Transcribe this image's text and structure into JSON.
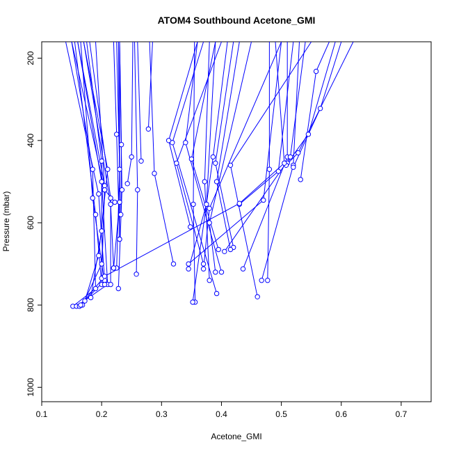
{
  "chart_data": {
    "type": "line",
    "title": "ATOM4 Southbound Acetone_GMI",
    "xlabel": "Acetone_GMI",
    "ylabel": "Pressure (mbar)",
    "xlim": [
      0.1,
      0.75
    ],
    "ylim": [
      1035,
      160
    ],
    "y_axis_inverted": true,
    "grid": false,
    "marker": "open-circle",
    "color": "#0000ff",
    "x_ticks": [
      "0.1",
      "0.2",
      "0.3",
      "0.4",
      "0.5",
      "0.6",
      "0.7"
    ],
    "y_ticks": [
      "200",
      "400",
      "600",
      "800",
      "1000"
    ],
    "series": [
      {
        "points": [
          [
            0.15,
            160
          ],
          [
            0.185,
            470
          ],
          [
            0.19,
            760
          ],
          [
            0.152,
            803
          ]
        ]
      },
      {
        "points": [
          [
            0.16,
            160
          ],
          [
            0.2,
            500
          ],
          [
            0.21,
            750
          ],
          [
            0.158,
            803
          ]
        ]
      },
      {
        "points": [
          [
            0.14,
            160
          ],
          [
            0.195,
            530
          ],
          [
            0.205,
            740
          ],
          [
            0.163,
            803
          ]
        ]
      },
      {
        "points": [
          [
            0.15,
            160
          ],
          [
            0.205,
            520
          ],
          [
            0.2,
            700
          ],
          [
            0.168,
            800
          ]
        ]
      },
      {
        "points": [
          [
            0.17,
            160
          ],
          [
            0.21,
            470
          ],
          [
            0.195,
            680
          ],
          [
            0.172,
            790
          ]
        ]
      },
      {
        "points": [
          [
            0.175,
            160
          ],
          [
            0.2,
            450
          ],
          [
            0.2,
            620
          ],
          [
            0.182,
            782
          ]
        ]
      },
      {
        "points": [
          [
            0.155,
            160
          ],
          [
            0.19,
            580
          ],
          [
            0.2,
            750
          ]
        ]
      },
      {
        "points": [
          [
            0.18,
            160
          ],
          [
            0.215,
            540
          ],
          [
            0.215,
            750
          ]
        ]
      },
      {
        "points": [
          [
            0.16,
            160
          ],
          [
            0.205,
            510
          ],
          [
            0.2,
            735
          ]
        ]
      },
      {
        "points": [
          [
            0.17,
            160
          ],
          [
            0.215,
            555
          ],
          [
            0.22,
            710
          ]
        ]
      },
      {
        "points": [
          [
            0.165,
            160
          ],
          [
            0.185,
            540
          ],
          [
            0.205,
            750
          ]
        ]
      },
      {
        "points": [
          [
            0.22,
            160
          ],
          [
            0.225,
            385
          ],
          [
            0.23,
            640
          ]
        ]
      },
      {
        "points": [
          [
            0.23,
            160
          ],
          [
            0.233,
            410
          ],
          [
            0.232,
            580
          ]
        ]
      },
      {
        "points": [
          [
            0.225,
            160
          ],
          [
            0.23,
            470
          ],
          [
            0.225,
            710
          ]
        ]
      },
      {
        "points": [
          [
            0.23,
            160
          ],
          [
            0.234,
            520
          ],
          [
            0.228,
            760
          ]
        ]
      },
      {
        "points": [
          [
            0.228,
            160
          ],
          [
            0.23,
            550
          ],
          [
            0.22,
            710
          ]
        ]
      },
      {
        "points": [
          [
            0.252,
            160
          ],
          [
            0.25,
            440
          ],
          [
            0.243,
            505
          ]
        ]
      },
      {
        "points": [
          [
            0.255,
            160
          ],
          [
            0.26,
            520
          ],
          [
            0.258,
            725
          ]
        ]
      },
      {
        "points": [
          [
            0.26,
            160
          ],
          [
            0.266,
            450
          ]
        ]
      },
      {
        "points": [
          [
            0.285,
            160
          ],
          [
            0.278,
            372
          ]
        ]
      },
      {
        "points": [
          [
            0.28,
            160
          ],
          [
            0.288,
            480
          ],
          [
            0.32,
            700
          ]
        ]
      },
      {
        "points": [
          [
            0.36,
            160
          ],
          [
            0.34,
            405
          ],
          [
            0.4,
            720
          ]
        ]
      },
      {
        "points": [
          [
            0.37,
            160
          ],
          [
            0.318,
            405
          ],
          [
            0.392,
            772
          ]
        ]
      },
      {
        "points": [
          [
            0.36,
            160
          ],
          [
            0.312,
            400
          ],
          [
            0.348,
            610
          ]
        ]
      },
      {
        "points": [
          [
            0.4,
            160
          ],
          [
            0.325,
            455
          ],
          [
            0.37,
            700
          ]
        ]
      },
      {
        "points": [
          [
            0.39,
            160
          ],
          [
            0.35,
            445
          ],
          [
            0.395,
            665
          ]
        ]
      },
      {
        "points": [
          [
            0.355,
            160
          ],
          [
            0.353,
            555
          ],
          [
            0.356,
            793
          ]
        ]
      },
      {
        "points": [
          [
            0.38,
            160
          ],
          [
            0.372,
            500
          ],
          [
            0.38,
            740
          ]
        ]
      },
      {
        "points": [
          [
            0.42,
            160
          ],
          [
            0.39,
            455
          ],
          [
            0.42,
            660
          ]
        ]
      },
      {
        "points": [
          [
            0.41,
            160
          ],
          [
            0.386,
            440
          ],
          [
            0.352,
            793
          ]
        ]
      },
      {
        "points": [
          [
            0.43,
            160
          ],
          [
            0.392,
            500
          ],
          [
            0.415,
            665
          ]
        ]
      },
      {
        "points": [
          [
            0.39,
            160
          ],
          [
            0.375,
            555
          ],
          [
            0.345,
            712
          ]
        ]
      },
      {
        "points": [
          [
            0.5,
            160
          ],
          [
            0.38,
            565
          ],
          [
            0.37,
            712
          ]
        ]
      },
      {
        "points": [
          [
            0.45,
            160
          ],
          [
            0.38,
            600
          ],
          [
            0.39,
            720
          ]
        ]
      },
      {
        "points": [
          [
            0.55,
            160
          ],
          [
            0.415,
            460
          ],
          [
            0.46,
            780
          ]
        ]
      },
      {
        "points": [
          [
            0.48,
            160
          ],
          [
            0.48,
            470
          ],
          [
            0.477,
            740
          ]
        ]
      },
      {
        "points": [
          [
            0.5,
            160
          ],
          [
            0.47,
            545
          ],
          [
            0.345,
            700
          ]
        ]
      },
      {
        "points": [
          [
            0.52,
            160
          ],
          [
            0.495,
            475
          ],
          [
            0.43,
            555
          ]
        ]
      },
      {
        "points": [
          [
            0.51,
            160
          ],
          [
            0.51,
            440
          ],
          [
            0.436,
            712
          ]
        ]
      },
      {
        "points": [
          [
            0.53,
            160
          ],
          [
            0.52,
            460
          ],
          [
            0.467,
            740
          ]
        ]
      },
      {
        "points": [
          [
            0.54,
            160
          ],
          [
            0.515,
            440
          ],
          [
            0.405,
            670
          ]
        ]
      },
      {
        "points": [
          [
            0.58,
            160
          ],
          [
            0.558,
            232
          ],
          [
            0.532,
            495
          ]
        ]
      },
      {
        "points": [
          [
            0.6,
            160
          ],
          [
            0.565,
            322
          ],
          [
            0.52,
            465
          ]
        ]
      },
      {
        "points": [
          [
            0.59,
            160
          ],
          [
            0.545,
            385
          ],
          [
            0.51,
            455
          ]
        ]
      },
      {
        "points": [
          [
            0.62,
            160
          ],
          [
            0.528,
            430
          ],
          [
            0.508,
            460
          ]
        ]
      },
      {
        "points": [
          [
            0.49,
            160
          ],
          [
            0.505,
            455
          ],
          [
            0.43,
            553
          ],
          [
            0.205,
            730
          ],
          [
            0.165,
            800
          ]
        ]
      },
      {
        "points": [
          [
            0.23,
            160
          ],
          [
            0.23,
            640
          ]
        ]
      },
      {
        "points": [
          [
            0.19,
            160
          ],
          [
            0.205,
            520
          ],
          [
            0.222,
            550
          ]
        ]
      }
    ]
  }
}
